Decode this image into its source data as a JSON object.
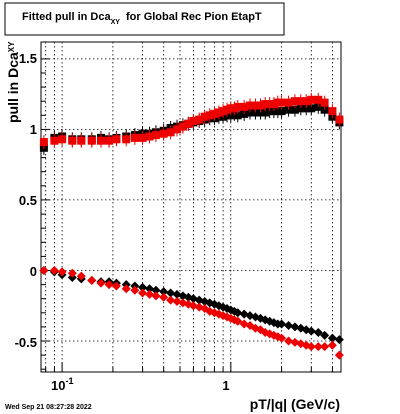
{
  "chart_data": {
    "type": "scatter",
    "title": "Fitted pull in Dca",
    "title_subscript": "XY",
    "title_suffix": "for Global Rec Pion EtapT",
    "xlabel": "pT/|q| (GeV/c)",
    "ylabel": "pull in Dca",
    "ylabel_subscript": "XY",
    "x_scale": "log",
    "xlim": [
      0.075,
      4.5
    ],
    "ylim": [
      -0.72,
      1.62
    ],
    "grid": true,
    "x_tick_labels": [
      "10",
      "-1",
      "1"
    ],
    "y_tick_labels": [
      "1.5",
      "1",
      "0.5",
      "0",
      "-0.5"
    ],
    "y_ticks": [
      1.5,
      1.0,
      0.5,
      0.0,
      -0.5
    ],
    "colors": {
      "series_a": "#000000",
      "series_b": "#ee0000"
    },
    "series": [
      {
        "color": "#000000",
        "marker": "square",
        "x": [
          0.078,
          0.09,
          0.1,
          0.115,
          0.13,
          0.15,
          0.17,
          0.19,
          0.21,
          0.24,
          0.27,
          0.3,
          0.33,
          0.36,
          0.4,
          0.44,
          0.48,
          0.52,
          0.56,
          0.6,
          0.65,
          0.7,
          0.75,
          0.8,
          0.85,
          0.9,
          0.95,
          1.0,
          1.05,
          1.1,
          1.2,
          1.3,
          1.4,
          1.5,
          1.6,
          1.7,
          1.8,
          1.9,
          2.0,
          2.2,
          2.4,
          2.6,
          2.8,
          3.0,
          3.3,
          3.6,
          4.0,
          4.4
        ],
        "y": [
          0.87,
          0.94,
          0.95,
          0.93,
          0.93,
          0.93,
          0.94,
          0.93,
          0.94,
          0.95,
          0.96,
          0.97,
          0.97,
          0.98,
          0.99,
          1.01,
          1.02,
          1.03,
          1.04,
          1.05,
          1.06,
          1.07,
          1.08,
          1.08,
          1.09,
          1.09,
          1.1,
          1.1,
          1.11,
          1.1,
          1.11,
          1.12,
          1.12,
          1.12,
          1.12,
          1.13,
          1.13,
          1.13,
          1.13,
          1.14,
          1.14,
          1.15,
          1.15,
          1.15,
          1.16,
          1.14,
          1.09,
          1.05
        ]
      },
      {
        "color": "#ee0000",
        "marker": "square",
        "x": [
          0.078,
          0.09,
          0.1,
          0.115,
          0.13,
          0.15,
          0.17,
          0.19,
          0.21,
          0.24,
          0.27,
          0.3,
          0.33,
          0.36,
          0.4,
          0.44,
          0.48,
          0.52,
          0.56,
          0.6,
          0.65,
          0.7,
          0.75,
          0.8,
          0.85,
          0.9,
          0.95,
          1.0,
          1.05,
          1.1,
          1.2,
          1.3,
          1.4,
          1.5,
          1.6,
          1.7,
          1.8,
          1.9,
          2.0,
          2.2,
          2.4,
          2.6,
          2.8,
          3.0,
          3.3,
          3.6,
          4.0,
          4.4
        ],
        "y": [
          0.91,
          0.92,
          0.93,
          0.92,
          0.92,
          0.92,
          0.92,
          0.92,
          0.93,
          0.93,
          0.94,
          0.94,
          0.95,
          0.96,
          0.97,
          0.98,
          1.0,
          1.02,
          1.04,
          1.06,
          1.07,
          1.09,
          1.1,
          1.11,
          1.12,
          1.13,
          1.14,
          1.15,
          1.15,
          1.16,
          1.16,
          1.17,
          1.17,
          1.17,
          1.18,
          1.18,
          1.18,
          1.19,
          1.19,
          1.19,
          1.2,
          1.2,
          1.2,
          1.21,
          1.21,
          1.19,
          1.13,
          1.07
        ]
      },
      {
        "color": "#000000",
        "marker": "diamond",
        "x": [
          0.078,
          0.09,
          0.1,
          0.115,
          0.13,
          0.15,
          0.17,
          0.19,
          0.21,
          0.24,
          0.27,
          0.3,
          0.33,
          0.36,
          0.4,
          0.44,
          0.48,
          0.52,
          0.56,
          0.6,
          0.65,
          0.7,
          0.75,
          0.8,
          0.85,
          0.9,
          0.95,
          1.0,
          1.05,
          1.1,
          1.2,
          1.3,
          1.4,
          1.5,
          1.6,
          1.7,
          1.8,
          1.9,
          2.0,
          2.2,
          2.4,
          2.6,
          2.8,
          3.0,
          3.3,
          3.6,
          4.0,
          4.4
        ],
        "y": [
          0.0,
          -0.01,
          -0.03,
          -0.05,
          -0.06,
          -0.07,
          -0.08,
          -0.08,
          -0.09,
          -0.1,
          -0.11,
          -0.12,
          -0.13,
          -0.14,
          -0.15,
          -0.16,
          -0.17,
          -0.18,
          -0.19,
          -0.2,
          -0.21,
          -0.22,
          -0.23,
          -0.24,
          -0.25,
          -0.26,
          -0.27,
          -0.28,
          -0.29,
          -0.3,
          -0.31,
          -0.32,
          -0.33,
          -0.34,
          -0.35,
          -0.36,
          -0.37,
          -0.38,
          -0.38,
          -0.39,
          -0.4,
          -0.41,
          -0.42,
          -0.43,
          -0.44,
          -0.46,
          -0.48,
          -0.49
        ]
      },
      {
        "color": "#ee0000",
        "marker": "diamond",
        "x": [
          0.078,
          0.09,
          0.1,
          0.115,
          0.13,
          0.15,
          0.17,
          0.19,
          0.21,
          0.24,
          0.27,
          0.3,
          0.33,
          0.36,
          0.4,
          0.44,
          0.48,
          0.52,
          0.56,
          0.6,
          0.65,
          0.7,
          0.75,
          0.8,
          0.85,
          0.9,
          0.95,
          1.0,
          1.05,
          1.1,
          1.2,
          1.3,
          1.4,
          1.5,
          1.6,
          1.7,
          1.8,
          1.9,
          2.0,
          2.2,
          2.4,
          2.6,
          2.8,
          3.0,
          3.3,
          3.6,
          4.0,
          4.4
        ],
        "y": [
          0.0,
          0.0,
          -0.01,
          -0.02,
          -0.04,
          -0.07,
          -0.09,
          -0.1,
          -0.11,
          -0.13,
          -0.14,
          -0.16,
          -0.17,
          -0.18,
          -0.19,
          -0.21,
          -0.22,
          -0.23,
          -0.24,
          -0.25,
          -0.26,
          -0.27,
          -0.29,
          -0.3,
          -0.31,
          -0.32,
          -0.33,
          -0.34,
          -0.35,
          -0.36,
          -0.38,
          -0.39,
          -0.41,
          -0.42,
          -0.44,
          -0.45,
          -0.46,
          -0.47,
          -0.48,
          -0.5,
          -0.51,
          -0.52,
          -0.53,
          -0.54,
          -0.54,
          -0.54,
          -0.53,
          -0.6
        ]
      }
    ]
  },
  "footer": {
    "timestamp": "Wed Sep 21 08:27:28 2022"
  }
}
